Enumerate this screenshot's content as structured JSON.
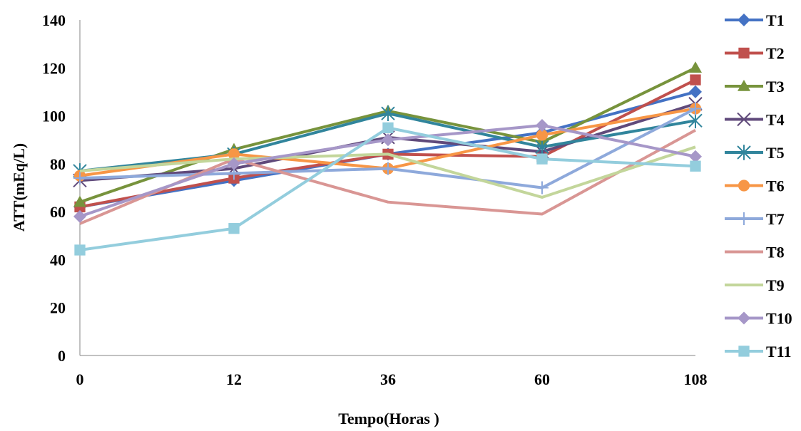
{
  "chart_data": {
    "type": "line",
    "xlabel": "Tempo(Horas )",
    "ylabel": "ATT(mEq/L)",
    "categories": [
      "0",
      "12",
      "36",
      "60",
      "108"
    ],
    "ylim": [
      0,
      140
    ],
    "yticks": [
      0,
      20,
      40,
      60,
      80,
      100,
      120,
      140
    ],
    "grid": false,
    "legend_position": "right",
    "series": [
      {
        "name": "T1",
        "values": [
          62,
          73,
          84,
          93,
          110
        ],
        "color": "#4472C4",
        "marker": "diamond"
      },
      {
        "name": "T2",
        "values": [
          62,
          74,
          84,
          83,
          115
        ],
        "color": "#C0504D",
        "marker": "square"
      },
      {
        "name": "T3",
        "values": [
          64,
          86,
          102,
          89,
          120
        ],
        "color": "#77933C",
        "marker": "triangle"
      },
      {
        "name": "T4",
        "values": [
          73,
          78,
          91,
          85,
          105
        ],
        "color": "#604A7B",
        "marker": "x"
      },
      {
        "name": "T5",
        "values": [
          77,
          84,
          101,
          87,
          98
        ],
        "color": "#31859C",
        "marker": "star"
      },
      {
        "name": "T6",
        "values": [
          75,
          84,
          78,
          92,
          103
        ],
        "color": "#F79646",
        "marker": "circle"
      },
      {
        "name": "T7",
        "values": [
          74,
          76,
          78,
          70,
          103
        ],
        "color": "#8EA9DB",
        "marker": "plus"
      },
      {
        "name": "T8",
        "values": [
          55,
          82,
          64,
          59,
          94
        ],
        "color": "#D99694",
        "marker": "none"
      },
      {
        "name": "T9",
        "values": [
          77,
          82,
          84,
          66,
          87
        ],
        "color": "#C3D69B",
        "marker": "none"
      },
      {
        "name": "T10",
        "values": [
          58,
          80,
          90,
          96,
          83
        ],
        "color": "#A697C8",
        "marker": "diamond"
      },
      {
        "name": "T11",
        "values": [
          44,
          53,
          95,
          82,
          79
        ],
        "color": "#93CDDD",
        "marker": "square"
      }
    ]
  }
}
